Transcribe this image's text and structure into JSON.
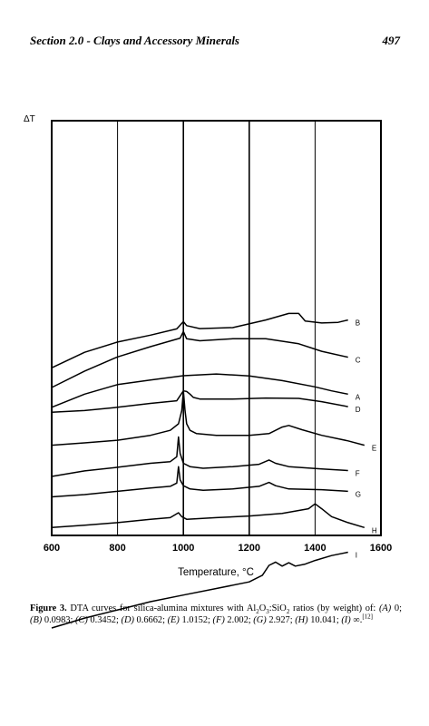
{
  "header": {
    "title": "Section 2.0 - Clays and Accessory Minerals",
    "page_number": "497"
  },
  "caption": {
    "label": "Figure 3.",
    "text_before_formula": "DTA curves for silica-alumina mixtures with ",
    "formula": {
      "al": "Al",
      "al_sub": "2",
      "o": "O",
      "o_sub": "3",
      "sio": ":SiO",
      "sio_sub": "2"
    },
    "text_after_formula": " ratios (by weight) of:",
    "items": [
      {
        "key": "(A)",
        "value": "0"
      },
      {
        "key": "(B)",
        "value": "0.0983"
      },
      {
        "key": "(C)",
        "value": "0.3452"
      },
      {
        "key": "(D)",
        "value": "0.6662"
      },
      {
        "key": "(E)",
        "value": "1.0152"
      },
      {
        "key": "(F)",
        "value": "2.002"
      },
      {
        "key": "(G)",
        "value": "2.927"
      },
      {
        "key": "(H)",
        "value": "10.041"
      },
      {
        "key": "(I)",
        "value": "∞."
      }
    ],
    "reference": "[12]"
  },
  "chart_data": {
    "type": "line",
    "ylabel": "ΔT",
    "xlabel": "Temperature, °C",
    "xlim": [
      600,
      1600
    ],
    "x_ticks": [
      "600",
      "800",
      "1000",
      "1200",
      "1400",
      "1600"
    ],
    "vertical_gridlines": [
      800,
      1000,
      1200,
      1400
    ],
    "series": [
      {
        "name": "A",
        "x": [
          600,
          700,
          800,
          900,
          1000,
          1100,
          1200,
          1300,
          1400,
          1450,
          1500
        ],
        "y": [
          0.87,
          0.83,
          0.801,
          0.787,
          0.774,
          0.769,
          0.775,
          0.789,
          0.808,
          0.82,
          0.83
        ]
      },
      {
        "name": "B",
        "x": [
          600,
          700,
          800,
          900,
          980,
          1000,
          1010,
          1050,
          1150,
          1250,
          1320,
          1350,
          1370,
          1420,
          1470,
          1500
        ],
        "y": [
          0.75,
          0.703,
          0.672,
          0.651,
          0.632,
          0.61,
          0.622,
          0.631,
          0.628,
          0.605,
          0.585,
          0.585,
          0.608,
          0.614,
          0.612,
          0.605
        ]
      },
      {
        "name": "C",
        "x": [
          600,
          700,
          800,
          900,
          990,
          1000,
          1010,
          1050,
          1150,
          1250,
          1350,
          1420,
          1500
        ],
        "y": [
          0.81,
          0.76,
          0.717,
          0.686,
          0.66,
          0.64,
          0.662,
          0.668,
          0.662,
          0.662,
          0.677,
          0.7,
          0.718
        ]
      },
      {
        "name": "D",
        "x": [
          600,
          700,
          800,
          900,
          980,
          990,
          1000,
          1010,
          1020,
          1030,
          1050,
          1150,
          1250,
          1350,
          1420,
          1500
        ],
        "y": [
          0.885,
          0.88,
          0.87,
          0.858,
          0.85,
          0.835,
          0.82,
          0.822,
          0.83,
          0.84,
          0.845,
          0.845,
          0.842,
          0.843,
          0.853,
          0.868
        ]
      },
      {
        "name": "E",
        "x": [
          600,
          700,
          800,
          900,
          960,
          985,
          995,
          1000,
          1005,
          1010,
          1020,
          1040,
          1100,
          1200,
          1260,
          1300,
          1320,
          1360,
          1420,
          1500,
          1550
        ],
        "y": [
          0.985,
          0.978,
          0.97,
          0.955,
          0.94,
          0.92,
          0.88,
          0.82,
          0.88,
          0.92,
          0.94,
          0.95,
          0.955,
          0.955,
          0.95,
          0.93,
          0.925,
          0.938,
          0.955,
          0.972,
          0.985
        ]
      },
      {
        "name": "F",
        "x": [
          600,
          700,
          800,
          900,
          960,
          980,
          985,
          990,
          1000,
          1020,
          1060,
          1150,
          1230,
          1260,
          1280,
          1320,
          1420,
          1500
        ],
        "y": [
          1.08,
          1.063,
          1.052,
          1.04,
          1.035,
          1.02,
          0.96,
          1.01,
          1.04,
          1.05,
          1.055,
          1.05,
          1.043,
          1.03,
          1.04,
          1.05,
          1.057,
          1.062
        ]
      },
      {
        "name": "G",
        "x": [
          600,
          700,
          800,
          900,
          960,
          980,
          985,
          990,
          1000,
          1020,
          1060,
          1150,
          1230,
          1260,
          1280,
          1320,
          1420,
          1500
        ],
        "y": [
          1.142,
          1.135,
          1.125,
          1.115,
          1.11,
          1.1,
          1.05,
          1.09,
          1.108,
          1.118,
          1.122,
          1.118,
          1.11,
          1.098,
          1.108,
          1.118,
          1.12,
          1.125
        ]
      },
      {
        "name": "H",
        "x": [
          600,
          700,
          800,
          900,
          960,
          985,
          995,
          1010,
          1100,
          1200,
          1300,
          1380,
          1400,
          1420,
          1450,
          1500,
          1550
        ],
        "y": [
          1.235,
          1.228,
          1.22,
          1.21,
          1.205,
          1.19,
          1.202,
          1.21,
          1.205,
          1.2,
          1.192,
          1.178,
          1.163,
          1.178,
          1.202,
          1.22,
          1.235
        ]
      },
      {
        "name": "I",
        "x": [
          600,
          700,
          800,
          900,
          1000,
          1100,
          1200,
          1240,
          1260,
          1280,
          1300,
          1320,
          1340,
          1370,
          1400,
          1450,
          1500
        ],
        "y": [
          1.54,
          1.51,
          1.485,
          1.46,
          1.44,
          1.42,
          1.4,
          1.38,
          1.35,
          1.34,
          1.352,
          1.342,
          1.352,
          1.346,
          1.335,
          1.32,
          1.31
        ]
      }
    ],
    "curve_labels": [
      "A",
      "B",
      "C",
      "D",
      "E",
      "F",
      "G",
      "H",
      "I"
    ]
  }
}
